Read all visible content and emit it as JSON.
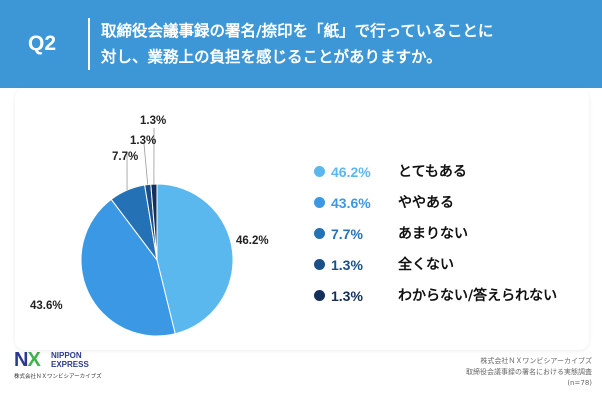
{
  "header": {
    "q_label": "Q2",
    "question_line1": "取締役会議事録の署名/捺印を「紙」で行っていることに",
    "question_line2": "対し、業務上の負担を感じることがありますか。",
    "background_color": "#3d97d7"
  },
  "chart_data": {
    "type": "pie",
    "title": "",
    "start": "top, clockwise",
    "slices": [
      {
        "label": "とてもある",
        "value": 46.2,
        "value_text": "46.2%",
        "color": "#5ab8ef"
      },
      {
        "label": "ややある",
        "value": 43.6,
        "value_text": "43.6%",
        "color": "#3b98e5"
      },
      {
        "label": "あまりない",
        "value": 7.7,
        "value_text": "7.7%",
        "color": "#2471b6"
      },
      {
        "label": "全くない",
        "value": 1.3,
        "value_text": "1.3%",
        "color": "#1b4f88"
      },
      {
        "label": "わからない/答えられない",
        "value": 1.3,
        "value_text": "1.3%",
        "color": "#14305a"
      }
    ]
  },
  "footer": {
    "logo_nx": "NX",
    "logo_brand_line1": "NIPPON",
    "logo_brand_line2": "EXPRESS",
    "logo_subtitle": "株式会社ＮＸワンビシアーカイブズ",
    "source_line1": "株式会社ＮＸワンビシアーカイブズ",
    "source_line2": "取締役会議事録の署名における実態調査",
    "source_line3": "(n=78)"
  }
}
